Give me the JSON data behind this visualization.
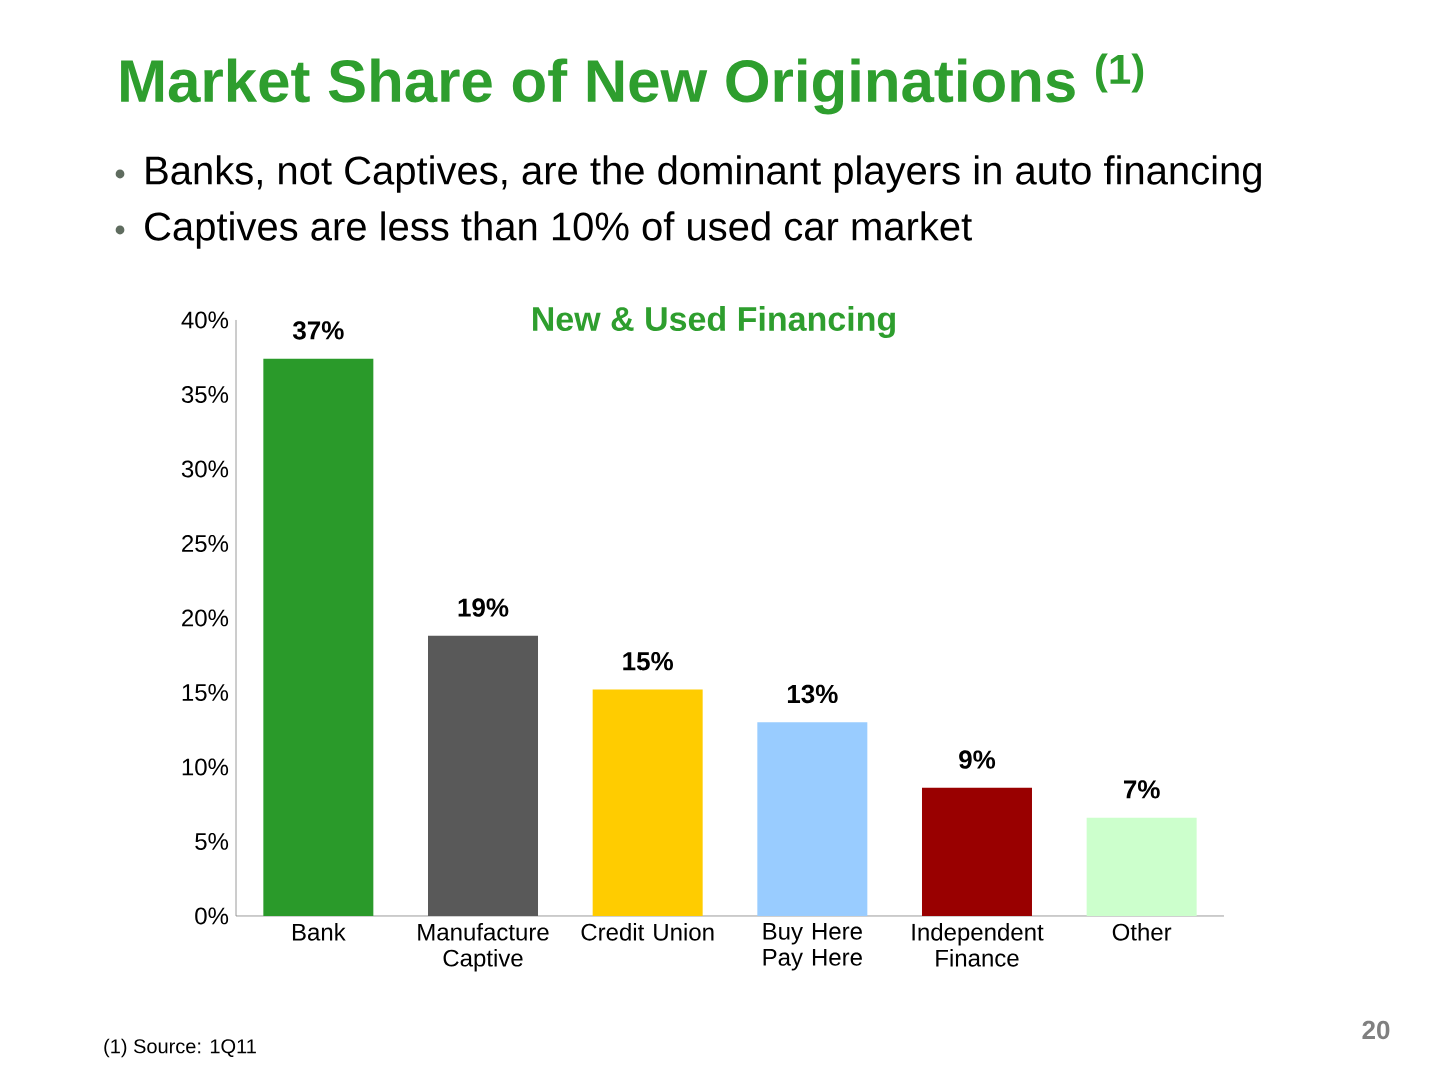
{
  "chart_data": {
    "type": "bar",
    "title": "Market Share of New Originations $^{(1)}$",
    "subtitle": "New & Used Financing",
    "categories": [
      "Bank",
      "Manufacture Captive",
      "Credit Union",
      "Buy Here Pay Here",
      "Independent Finance",
      "Other"
    ],
    "values": [
      37.4,
      18.8,
      15.2,
      13.0,
      8.6,
      6.6
    ],
    "value_labels": [
      "37%",
      "19%",
      "15%",
      "13%",
      "9%",
      "7%"
    ],
    "colors": [
      "#2a9a2a",
      "#595959",
      "#ffcc00",
      "#99ccff",
      "#990000",
      "#ccffcc"
    ],
    "ylim": [
      0,
      40
    ],
    "yticks": [
      {
        "value": 0,
        "label": "0%"
      },
      {
        "value": 5,
        "label": "5%"
      },
      {
        "value": 10,
        "label": "10%"
      },
      {
        "value": 15,
        "label": "15%"
      },
      {
        "value": 20,
        "label": "20%"
      },
      {
        "value": 25,
        "label": "25%"
      },
      {
        "value": 30,
        "label": "30%"
      },
      {
        "value": 35,
        "label": "35%"
      },
      {
        "value": 40,
        "label": "40%"
      }
    ],
    "annotations": [
      "Banks, not Captives, are the dominant players in auto financing",
      "Captives are less than 10% of used car market",
      "(1)  Source: 1Q11",
      "20"
    ]
  }
}
